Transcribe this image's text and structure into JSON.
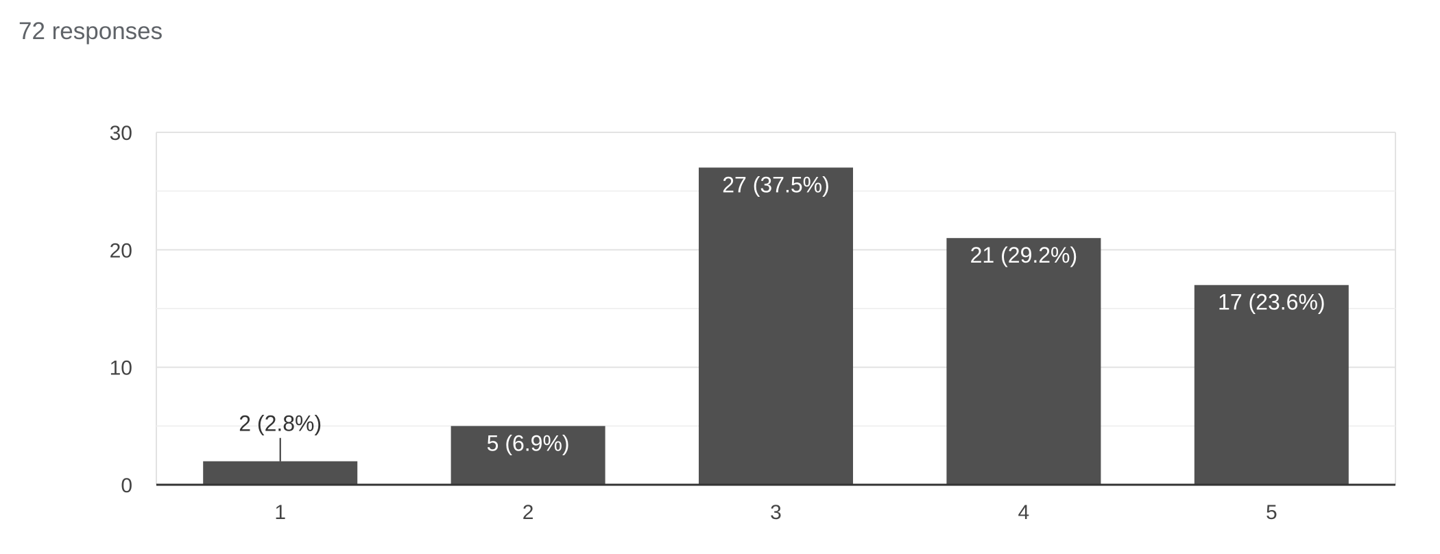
{
  "responses_label": "72 responses",
  "colors": {
    "bar": "#505050",
    "label_inside": "#ffffff",
    "label_outside": "#333333",
    "grid_major": "#e2e2e2",
    "grid_minor": "#f1f1f1",
    "axis": "#333333",
    "tick_text": "#444444"
  },
  "chart_data": {
    "type": "bar",
    "title": "",
    "xlabel": "",
    "ylabel": "",
    "categories": [
      "1",
      "2",
      "3",
      "4",
      "5"
    ],
    "values": [
      2,
      5,
      27,
      21,
      17
    ],
    "data_labels": [
      "2 (2.8%)",
      "5 (6.9%)",
      "27 (37.5%)",
      "21 (29.2%)",
      "17 (23.6%)"
    ],
    "ylim": [
      0,
      30
    ],
    "yticks": [
      "0",
      "10",
      "20",
      "30"
    ],
    "minor_gridlines": [
      5,
      15,
      25
    ],
    "grid": true,
    "legend": "none"
  }
}
